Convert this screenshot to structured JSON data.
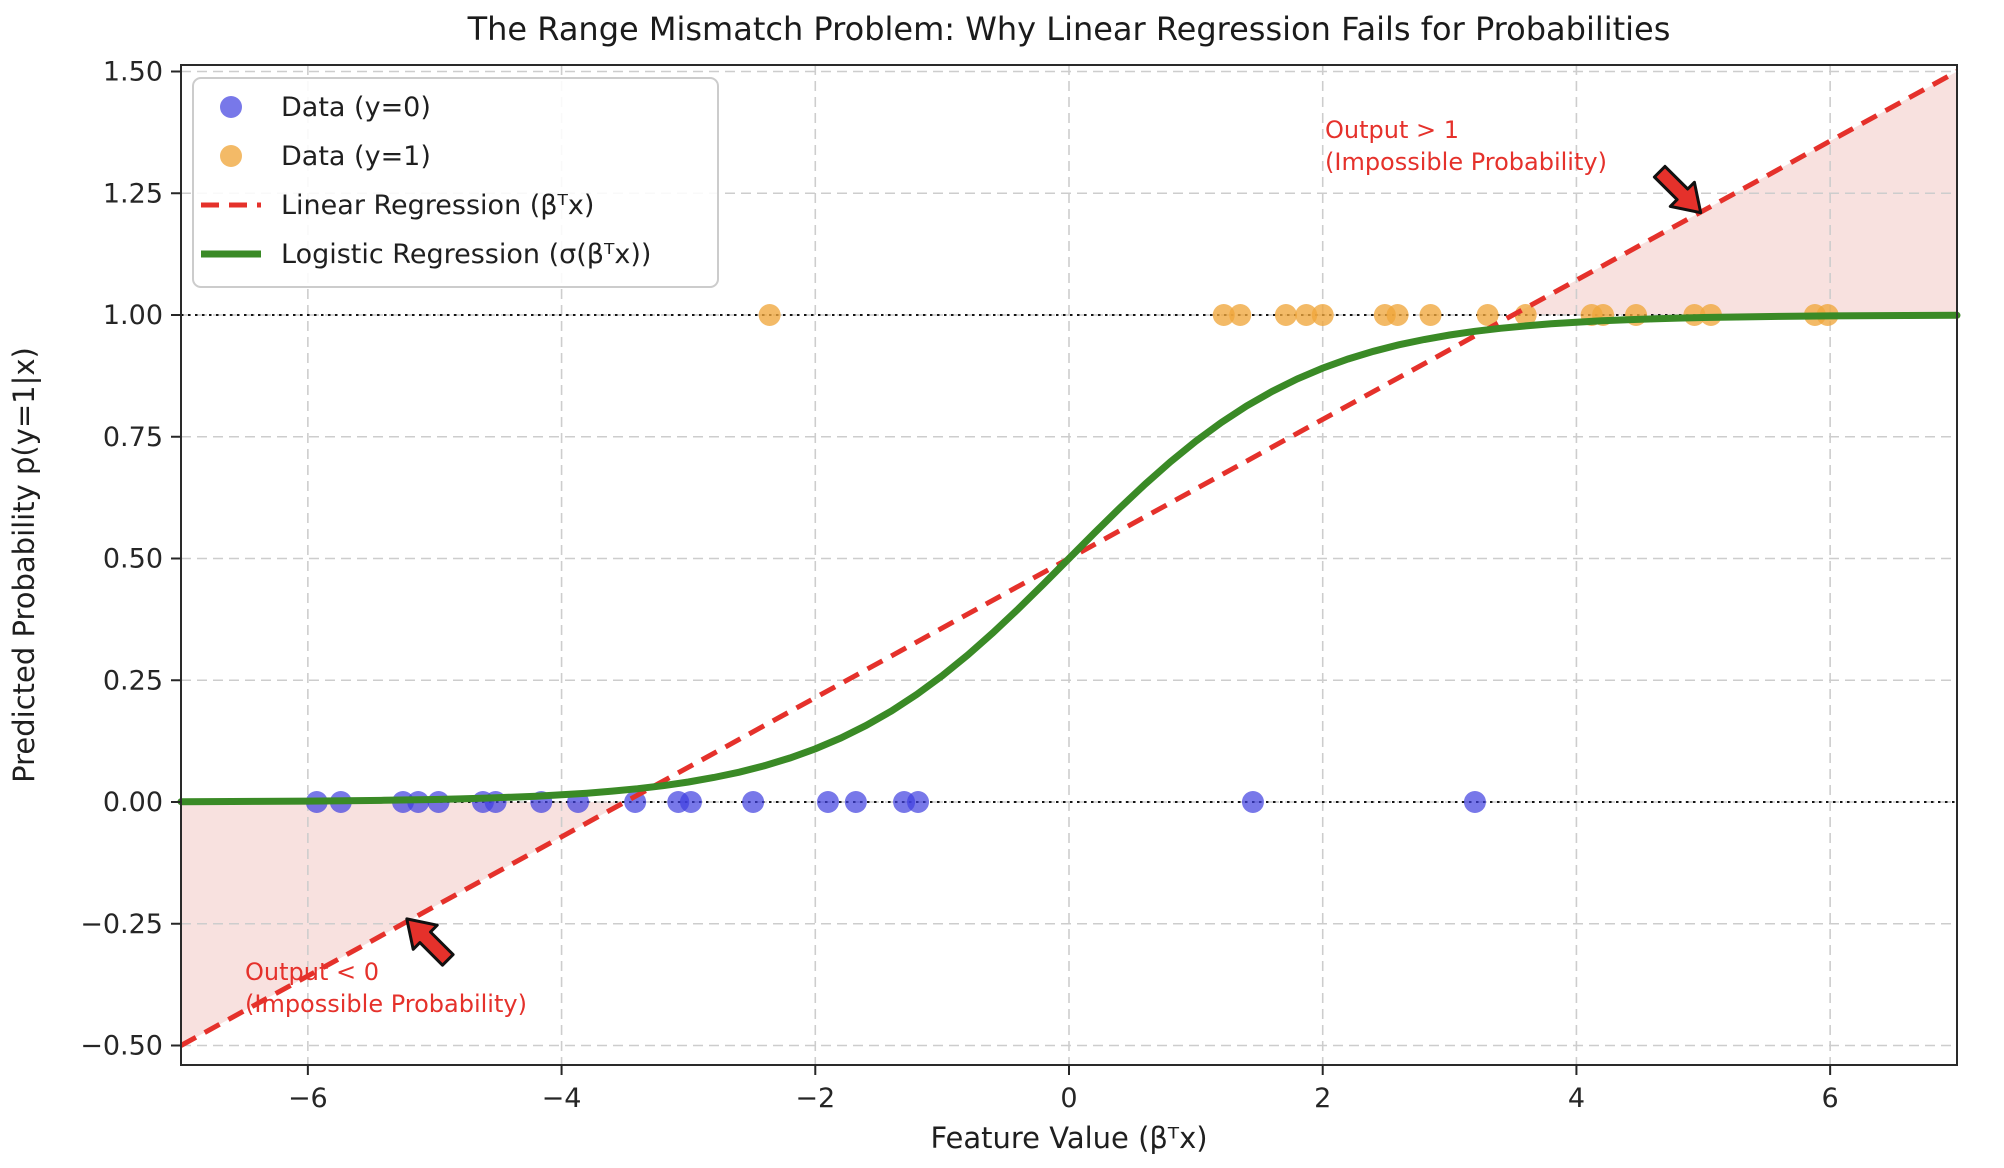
{
  "figure": {
    "title": "The Range Mismatch Problem: Why Linear Regression Fails for Probabilities",
    "xlabel": "Feature Value (βᵀx)",
    "ylabel": "Predicted Probability p(y=1|x)"
  },
  "chart_data": {
    "type": "scatter",
    "title": "The Range Mismatch Problem: Why Linear Regression Fails for Probabilities",
    "xlabel": "Feature Value (βᵀx)",
    "ylabel": "Predicted Probability p(y=1|x)",
    "xlim": [
      -7,
      7
    ],
    "ylim": [
      -0.5,
      1.5
    ],
    "grid": true,
    "legend_position": "upper left",
    "xtick_values": [
      -6,
      -4,
      -2,
      0,
      2,
      4,
      6
    ],
    "xtick_labels": [
      "−6",
      "−4",
      "−2",
      "0",
      "2",
      "4",
      "6"
    ],
    "ytick_values": [
      -0.5,
      -0.25,
      0,
      0.25,
      0.5,
      0.75,
      1,
      1.25,
      1.5
    ],
    "ytick_labels": [
      "−0.50",
      "−0.25",
      "0.00",
      "0.25",
      "0.50",
      "0.75",
      "1.00",
      "1.25",
      "1.50"
    ],
    "series": [
      {
        "name": "Data (y=0)",
        "type": "scatter",
        "color": "#3e3ee0",
        "marker_opacity": 0.7,
        "y_value": 0,
        "x": [
          -5.93,
          -5.74,
          -5.25,
          -5.13,
          -4.97,
          -4.62,
          -4.52,
          -4.16,
          -3.87,
          -3.42,
          -3.08,
          -2.98,
          -2.49,
          -1.9,
          -1.68,
          -1.3,
          -1.19,
          1.45,
          3.2
        ]
      },
      {
        "name": "Data (y=1)",
        "type": "scatter",
        "color": "#f0a73c",
        "marker_opacity": 0.78,
        "y_value": 1,
        "x": [
          -2.36,
          1.22,
          1.35,
          1.71,
          1.87,
          2.0,
          2.49,
          2.59,
          2.85,
          3.3,
          3.6,
          4.12,
          4.21,
          4.47,
          4.93,
          5.06,
          5.88,
          5.98
        ]
      },
      {
        "name": "Linear Regression (βᵀx)",
        "type": "line",
        "linestyle": "dashed",
        "color": "#e5312b",
        "equation": "y = 0.5 + x/7",
        "endpoints": [
          [
            -7,
            -0.5
          ],
          [
            7,
            1.5
          ]
        ]
      },
      {
        "name": "Logistic Regression (σ(βᵀx))",
        "type": "line",
        "linestyle": "solid",
        "color": "#3a8a26",
        "equation": "y = 1 / (1 + exp(−1.05x))",
        "sigmoid_k": 1.05
      }
    ],
    "reference_lines": [
      {
        "y": 0,
        "style": "dotted",
        "color": "#151515"
      },
      {
        "y": 1,
        "style": "dotted",
        "color": "#151515"
      }
    ],
    "shaded_regions": [
      {
        "label": "linear output below 0",
        "polygon": [
          [
            -7,
            0
          ],
          [
            -3.5,
            0
          ],
          [
            -7,
            -0.5
          ]
        ],
        "color": "#f8e1df"
      },
      {
        "label": "linear output above 1",
        "polygon": [
          [
            3.5,
            1
          ],
          [
            7,
            1
          ],
          [
            7,
            1.5
          ]
        ],
        "color": "#f8e1df"
      }
    ],
    "annotations": [
      {
        "id": "high",
        "line1": "Output > 1",
        "line2": "(Impossible Probability)",
        "color": "#e5312b",
        "arrow_tip": [
          4.98,
          1.21
        ],
        "arrow_dir": "down-right"
      },
      {
        "id": "low",
        "line1": "Output < 0",
        "line2": "(Impossible Probability)",
        "color": "#e5312b",
        "arrow_tip": [
          -5.22,
          -0.24
        ],
        "arrow_dir": "up-left"
      }
    ]
  }
}
